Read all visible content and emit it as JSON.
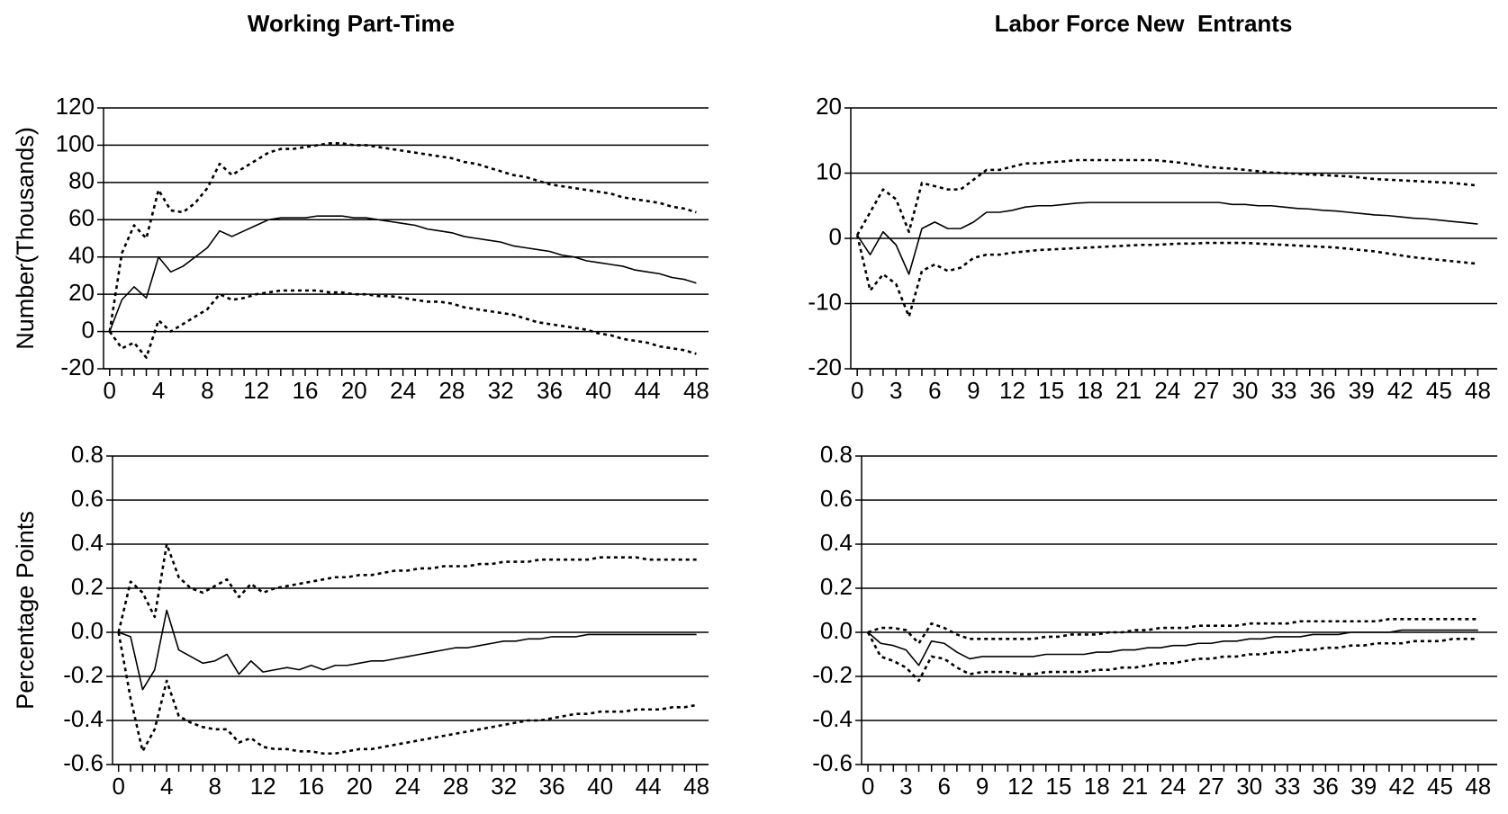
{
  "chart_data": [
    {
      "type": "line",
      "title": "Working Part-Time",
      "ylabel": "Number(Thousands)",
      "x": [
        0,
        1,
        2,
        3,
        4,
        5,
        6,
        7,
        8,
        9,
        10,
        11,
        12,
        13,
        14,
        15,
        16,
        17,
        18,
        19,
        20,
        21,
        22,
        23,
        24,
        25,
        26,
        27,
        28,
        29,
        30,
        31,
        32,
        33,
        34,
        35,
        36,
        37,
        38,
        39,
        40,
        41,
        42,
        43,
        44,
        45,
        46,
        47,
        48
      ],
      "xlim": [
        -0.5,
        49
      ],
      "xticks": [
        0,
        4,
        8,
        12,
        16,
        20,
        24,
        28,
        32,
        36,
        40,
        44,
        48
      ],
      "ylim": [
        -20,
        120
      ],
      "yticks": [
        -20,
        0,
        20,
        40,
        60,
        80,
        100,
        120
      ],
      "grid": true,
      "series": [
        {
          "color": "#000000",
          "dash": "solid",
          "values": [
            0,
            17,
            24,
            18,
            40,
            32,
            35,
            40,
            45,
            54,
            51,
            54,
            57,
            60,
            61,
            61,
            61,
            62,
            62,
            62,
            61,
            61,
            60,
            59,
            58,
            57,
            55,
            54,
            53,
            51,
            50,
            49,
            48,
            46,
            45,
            44,
            43,
            41,
            40,
            38,
            37,
            36,
            35,
            33,
            32,
            31,
            29,
            28,
            26
          ]
        },
        {
          "color": "#000000",
          "dash": "dotted",
          "values": [
            0,
            42,
            57,
            50,
            76,
            65,
            64,
            69,
            77,
            90,
            84,
            88,
            92,
            96,
            98,
            98,
            99,
            100,
            101,
            101,
            100,
            100,
            99,
            98,
            97,
            96,
            95,
            94,
            93,
            91,
            90,
            88,
            86,
            84,
            83,
            81,
            79,
            78,
            77,
            76,
            75,
            74,
            72,
            71,
            70,
            69,
            67,
            66,
            64
          ]
        },
        {
          "color": "#000000",
          "dash": "dotted",
          "values": [
            0,
            -9,
            -6,
            -14,
            6,
            0,
            4,
            8,
            12,
            20,
            17,
            18,
            20,
            21,
            22,
            22,
            22,
            22,
            21,
            21,
            20,
            20,
            19,
            19,
            18,
            17,
            16,
            16,
            15,
            13,
            12,
            11,
            10,
            9,
            7,
            5,
            4,
            3,
            2,
            1,
            -1,
            -2,
            -4,
            -5,
            -6,
            -8,
            -9,
            -10,
            -12
          ]
        }
      ]
    },
    {
      "type": "line",
      "title": "Labor Force New  Entrants",
      "x": [
        0,
        1,
        2,
        3,
        4,
        5,
        6,
        7,
        8,
        9,
        10,
        11,
        12,
        13,
        14,
        15,
        16,
        17,
        18,
        19,
        20,
        21,
        22,
        23,
        24,
        25,
        26,
        27,
        28,
        29,
        30,
        31,
        32,
        33,
        34,
        35,
        36,
        37,
        38,
        39,
        40,
        41,
        42,
        43,
        44,
        45,
        46,
        47,
        48
      ],
      "xlim": [
        -0.5,
        49.5
      ],
      "xticks": [
        0,
        3,
        6,
        9,
        12,
        15,
        18,
        21,
        24,
        27,
        30,
        33,
        36,
        39,
        42,
        45,
        48
      ],
      "ylim": [
        -20,
        20
      ],
      "yticks": [
        -20,
        -10,
        0,
        10,
        20
      ],
      "grid": true,
      "series": [
        {
          "color": "#000000",
          "dash": "solid",
          "values": [
            0.5,
            -2.5,
            1,
            -1,
            -5.5,
            1.5,
            2.5,
            1.5,
            1.5,
            2.5,
            4,
            4,
            4.3,
            4.8,
            5,
            5,
            5.2,
            5.4,
            5.5,
            5.5,
            5.5,
            5.5,
            5.5,
            5.5,
            5.5,
            5.5,
            5.5,
            5.5,
            5.5,
            5.2,
            5.2,
            5,
            5,
            4.8,
            4.6,
            4.5,
            4.3,
            4.2,
            4,
            3.8,
            3.6,
            3.5,
            3.3,
            3.1,
            3,
            2.8,
            2.6,
            2.4,
            2.2
          ]
        },
        {
          "color": "#000000",
          "dash": "dotted",
          "values": [
            0.5,
            4,
            7.5,
            6,
            1,
            8.5,
            8,
            7.5,
            7.5,
            9,
            10.5,
            10.5,
            11,
            11.5,
            11.5,
            11.7,
            11.8,
            12,
            12,
            12,
            12,
            12,
            12,
            12,
            11.8,
            11.6,
            11.3,
            11,
            10.8,
            10.7,
            10.5,
            10.3,
            10.1,
            10,
            9.9,
            9.8,
            9.7,
            9.6,
            9.5,
            9.3,
            9.1,
            9,
            8.9,
            8.8,
            8.7,
            8.6,
            8.5,
            8.3,
            8.1
          ]
        },
        {
          "color": "#000000",
          "dash": "dotted",
          "values": [
            0.5,
            -8,
            -5.5,
            -7,
            -12,
            -5,
            -4,
            -5,
            -4.5,
            -3,
            -2.5,
            -2.5,
            -2.2,
            -2,
            -1.8,
            -1.7,
            -1.6,
            -1.5,
            -1.4,
            -1.3,
            -1.2,
            -1.1,
            -1,
            -1,
            -0.9,
            -0.8,
            -0.8,
            -0.7,
            -0.7,
            -0.7,
            -0.7,
            -0.8,
            -0.9,
            -1,
            -1.1,
            -1.2,
            -1.3,
            -1.4,
            -1.6,
            -1.8,
            -2,
            -2.3,
            -2.6,
            -2.9,
            -3.1,
            -3.3,
            -3.5,
            -3.7,
            -3.9
          ]
        }
      ]
    },
    {
      "type": "line",
      "ylabel": "Percentage Points",
      "x": [
        0,
        1,
        2,
        3,
        4,
        5,
        6,
        7,
        8,
        9,
        10,
        11,
        12,
        13,
        14,
        15,
        16,
        17,
        18,
        19,
        20,
        21,
        22,
        23,
        24,
        25,
        26,
        27,
        28,
        29,
        30,
        31,
        32,
        33,
        34,
        35,
        36,
        37,
        38,
        39,
        40,
        41,
        42,
        43,
        44,
        45,
        46,
        47,
        48
      ],
      "xlim": [
        -0.5,
        49
      ],
      "xticks": [
        0,
        4,
        8,
        12,
        16,
        20,
        24,
        28,
        32,
        36,
        40,
        44,
        48
      ],
      "ylim": [
        -0.6,
        0.8
      ],
      "yticks": [
        -0.6,
        -0.4,
        -0.2,
        {
          "value": 0,
          "label": "0.0"
        },
        0.2,
        0.4,
        0.6,
        0.8
      ],
      "grid": true,
      "series": [
        {
          "color": "#000000",
          "dash": "solid",
          "values": [
            0,
            -0.02,
            -0.26,
            -0.17,
            0.1,
            -0.08,
            -0.11,
            -0.14,
            -0.13,
            -0.1,
            -0.19,
            -0.13,
            -0.18,
            -0.17,
            -0.16,
            -0.17,
            -0.15,
            -0.17,
            -0.15,
            -0.15,
            -0.14,
            -0.13,
            -0.13,
            -0.12,
            -0.11,
            -0.1,
            -0.09,
            -0.08,
            -0.07,
            -0.07,
            -0.06,
            -0.05,
            -0.04,
            -0.04,
            -0.03,
            -0.03,
            -0.02,
            -0.02,
            -0.02,
            -0.01,
            -0.01,
            -0.01,
            -0.01,
            -0.01,
            -0.01,
            -0.01,
            -0.01,
            -0.01,
            -0.01
          ]
        },
        {
          "color": "#000000",
          "dash": "dotted",
          "values": [
            0,
            0.23,
            0.18,
            0.07,
            0.4,
            0.25,
            0.2,
            0.18,
            0.21,
            0.24,
            0.16,
            0.22,
            0.18,
            0.2,
            0.21,
            0.22,
            0.23,
            0.24,
            0.25,
            0.25,
            0.26,
            0.26,
            0.27,
            0.28,
            0.28,
            0.29,
            0.29,
            0.3,
            0.3,
            0.3,
            0.31,
            0.31,
            0.32,
            0.32,
            0.32,
            0.33,
            0.33,
            0.33,
            0.33,
            0.33,
            0.34,
            0.34,
            0.34,
            0.34,
            0.33,
            0.33,
            0.33,
            0.33,
            0.33
          ]
        },
        {
          "color": "#000000",
          "dash": "dotted",
          "values": [
            0,
            -0.3,
            -0.54,
            -0.44,
            -0.22,
            -0.38,
            -0.41,
            -0.43,
            -0.44,
            -0.44,
            -0.5,
            -0.48,
            -0.52,
            -0.53,
            -0.53,
            -0.54,
            -0.54,
            -0.55,
            -0.55,
            -0.54,
            -0.53,
            -0.53,
            -0.52,
            -0.51,
            -0.5,
            -0.49,
            -0.48,
            -0.47,
            -0.46,
            -0.45,
            -0.44,
            -0.43,
            -0.42,
            -0.41,
            -0.4,
            -0.4,
            -0.39,
            -0.38,
            -0.37,
            -0.37,
            -0.36,
            -0.36,
            -0.36,
            -0.35,
            -0.35,
            -0.35,
            -0.34,
            -0.34,
            -0.33
          ]
        }
      ]
    },
    {
      "type": "line",
      "x": [
        0,
        1,
        2,
        3,
        4,
        5,
        6,
        7,
        8,
        9,
        10,
        11,
        12,
        13,
        14,
        15,
        16,
        17,
        18,
        19,
        20,
        21,
        22,
        23,
        24,
        25,
        26,
        27,
        28,
        29,
        30,
        31,
        32,
        33,
        34,
        35,
        36,
        37,
        38,
        39,
        40,
        41,
        42,
        43,
        44,
        45,
        46,
        47,
        48
      ],
      "xlim": [
        -0.5,
        49.5
      ],
      "xticks": [
        0,
        3,
        6,
        9,
        12,
        15,
        18,
        21,
        24,
        27,
        30,
        33,
        36,
        39,
        42,
        45,
        48
      ],
      "ylim": [
        -0.6,
        0.8
      ],
      "yticks": [
        -0.6,
        -0.4,
        -0.2,
        {
          "value": 0,
          "label": "0.0"
        },
        0.2,
        0.4,
        0.6,
        0.8
      ],
      "grid": true,
      "series": [
        {
          "color": "#000000",
          "dash": "solid",
          "values": [
            0,
            -0.05,
            -0.06,
            -0.08,
            -0.15,
            -0.04,
            -0.05,
            -0.09,
            -0.12,
            -0.11,
            -0.11,
            -0.11,
            -0.11,
            -0.11,
            -0.1,
            -0.1,
            -0.1,
            -0.1,
            -0.09,
            -0.09,
            -0.08,
            -0.08,
            -0.07,
            -0.07,
            -0.06,
            -0.06,
            -0.05,
            -0.05,
            -0.04,
            -0.04,
            -0.03,
            -0.03,
            -0.02,
            -0.02,
            -0.02,
            -0.01,
            -0.01,
            -0.01,
            0,
            0,
            0,
            0,
            0.01,
            0.01,
            0.01,
            0.01,
            0.01,
            0.01,
            0.01
          ]
        },
        {
          "color": "#000000",
          "dash": "dotted",
          "values": [
            0,
            0.02,
            0.02,
            0.01,
            -0.05,
            0.04,
            0.02,
            -0.01,
            -0.03,
            -0.03,
            -0.03,
            -0.03,
            -0.03,
            -0.03,
            -0.02,
            -0.02,
            -0.01,
            -0.01,
            -0.01,
            0,
            0,
            0.01,
            0.01,
            0.02,
            0.02,
            0.02,
            0.03,
            0.03,
            0.03,
            0.03,
            0.04,
            0.04,
            0.04,
            0.04,
            0.05,
            0.05,
            0.05,
            0.05,
            0.05,
            0.05,
            0.05,
            0.06,
            0.06,
            0.06,
            0.06,
            0.06,
            0.06,
            0.06,
            0.06
          ]
        },
        {
          "color": "#000000",
          "dash": "dotted",
          "values": [
            0,
            -0.11,
            -0.13,
            -0.16,
            -0.22,
            -0.11,
            -0.12,
            -0.16,
            -0.19,
            -0.18,
            -0.18,
            -0.18,
            -0.19,
            -0.19,
            -0.18,
            -0.18,
            -0.18,
            -0.18,
            -0.17,
            -0.17,
            -0.16,
            -0.16,
            -0.15,
            -0.14,
            -0.14,
            -0.13,
            -0.12,
            -0.12,
            -0.11,
            -0.11,
            -0.1,
            -0.1,
            -0.09,
            -0.09,
            -0.08,
            -0.08,
            -0.07,
            -0.07,
            -0.06,
            -0.06,
            -0.05,
            -0.05,
            -0.05,
            -0.04,
            -0.04,
            -0.04,
            -0.03,
            -0.03,
            -0.03
          ]
        }
      ]
    }
  ]
}
